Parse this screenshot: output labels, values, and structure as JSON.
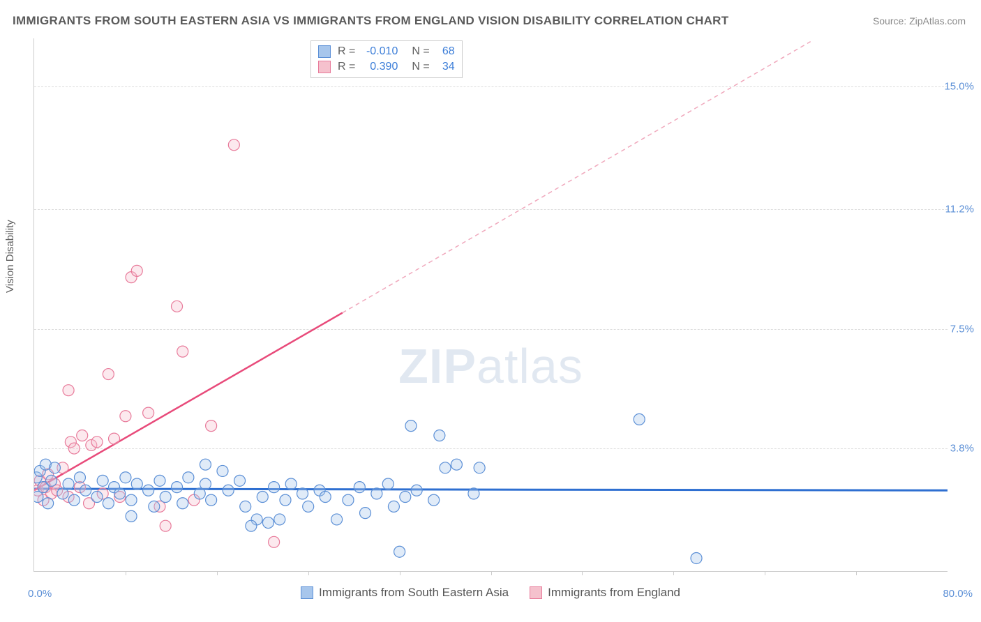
{
  "title": "IMMIGRANTS FROM SOUTH EASTERN ASIA VS IMMIGRANTS FROM ENGLAND VISION DISABILITY CORRELATION CHART",
  "source_label": "Source: ZipAtlas.com",
  "y_axis_label": "Vision Disability",
  "watermark_zip": "ZIP",
  "watermark_atlas": "atlas",
  "chart": {
    "type": "scatter",
    "xlim": [
      0,
      80
    ],
    "ylim": [
      0,
      16.5
    ],
    "x_tick_min_label": "0.0%",
    "x_tick_max_label": "80.0%",
    "y_ticks": [
      {
        "v": 3.8,
        "label": "3.8%"
      },
      {
        "v": 7.5,
        "label": "7.5%"
      },
      {
        "v": 11.2,
        "label": "11.2%"
      },
      {
        "v": 15.0,
        "label": "15.0%"
      }
    ],
    "x_tick_marks": [
      8,
      16,
      24,
      32,
      40,
      48,
      56,
      64,
      72
    ],
    "background_color": "#ffffff",
    "grid_color": "#dddddd",
    "series": {
      "blue": {
        "label": "Immigrants from South Eastern Asia",
        "color_fill": "#a7c6ec",
        "color_stroke": "#5b8fd6",
        "marker_radius": 8,
        "R": "-0.010",
        "N": "68",
        "trend": {
          "x1": 0,
          "y1": 2.55,
          "x2": 80,
          "y2": 2.5,
          "color": "#2e6fd1",
          "width": 3,
          "dash": "none"
        },
        "points": [
          [
            0.2,
            2.9
          ],
          [
            0.3,
            2.3
          ],
          [
            0.5,
            3.1
          ],
          [
            0.8,
            2.6
          ],
          [
            1.0,
            3.3
          ],
          [
            1.2,
            2.1
          ],
          [
            1.5,
            2.8
          ],
          [
            1.8,
            3.2
          ],
          [
            2.5,
            2.4
          ],
          [
            3.0,
            2.7
          ],
          [
            3.5,
            2.2
          ],
          [
            4.0,
            2.9
          ],
          [
            4.5,
            2.5
          ],
          [
            5.5,
            2.3
          ],
          [
            6.0,
            2.8
          ],
          [
            6.5,
            2.1
          ],
          [
            7.0,
            2.6
          ],
          [
            7.5,
            2.4
          ],
          [
            8.0,
            2.9
          ],
          [
            8.5,
            2.2
          ],
          [
            9.0,
            2.7
          ],
          [
            10.0,
            2.5
          ],
          [
            10.5,
            2.0
          ],
          [
            11.0,
            2.8
          ],
          [
            11.5,
            2.3
          ],
          [
            12.5,
            2.6
          ],
          [
            13.0,
            2.1
          ],
          [
            13.5,
            2.9
          ],
          [
            14.5,
            2.4
          ],
          [
            15.0,
            2.7
          ],
          [
            15.5,
            2.2
          ],
          [
            16.5,
            3.1
          ],
          [
            17.0,
            2.5
          ],
          [
            18.0,
            2.8
          ],
          [
            18.5,
            2.0
          ],
          [
            19.5,
            1.6
          ],
          [
            20.0,
            2.3
          ],
          [
            20.5,
            1.5
          ],
          [
            21.0,
            2.6
          ],
          [
            22.0,
            2.2
          ],
          [
            22.5,
            2.7
          ],
          [
            23.5,
            2.4
          ],
          [
            24.0,
            2.0
          ],
          [
            25.0,
            2.5
          ],
          [
            25.5,
            2.3
          ],
          [
            26.5,
            1.6
          ],
          [
            27.5,
            2.2
          ],
          [
            28.5,
            2.6
          ],
          [
            29.0,
            1.8
          ],
          [
            30.0,
            2.4
          ],
          [
            31.0,
            2.7
          ],
          [
            31.5,
            2.0
          ],
          [
            32.5,
            2.3
          ],
          [
            33.0,
            4.5
          ],
          [
            33.5,
            2.5
          ],
          [
            35.0,
            2.2
          ],
          [
            35.5,
            4.2
          ],
          [
            36.0,
            3.2
          ],
          [
            37.0,
            3.3
          ],
          [
            38.5,
            2.4
          ],
          [
            39.0,
            3.2
          ],
          [
            32.0,
            0.6
          ],
          [
            58.0,
            0.4
          ],
          [
            53.0,
            4.7
          ],
          [
            15.0,
            3.3
          ],
          [
            8.5,
            1.7
          ],
          [
            19.0,
            1.4
          ],
          [
            21.5,
            1.6
          ]
        ]
      },
      "pink": {
        "label": "Immigrants from England",
        "color_fill": "#f5c1cd",
        "color_stroke": "#e87a9a",
        "marker_radius": 8,
        "R": "0.390",
        "N": "34",
        "trend_solid": {
          "x1": 0,
          "y1": 2.5,
          "x2": 27,
          "y2": 8.0,
          "color": "#e84a7a",
          "width": 2.5
        },
        "trend_dash": {
          "x1": 27,
          "y1": 8.0,
          "x2": 68,
          "y2": 16.4,
          "color": "#f0a8bc",
          "width": 1.5,
          "dash": "6,5"
        },
        "points": [
          [
            0.3,
            2.5
          ],
          [
            0.5,
            2.8
          ],
          [
            0.8,
            2.2
          ],
          [
            1.0,
            2.6
          ],
          [
            1.2,
            3.0
          ],
          [
            1.5,
            2.4
          ],
          [
            1.8,
            2.7
          ],
          [
            2.0,
            2.5
          ],
          [
            2.5,
            3.2
          ],
          [
            3.0,
            2.3
          ],
          [
            3.2,
            4.0
          ],
          [
            3.5,
            3.8
          ],
          [
            4.0,
            2.6
          ],
          [
            4.2,
            4.2
          ],
          [
            4.8,
            2.1
          ],
          [
            5.0,
            3.9
          ],
          [
            5.5,
            4.0
          ],
          [
            6.0,
            2.4
          ],
          [
            6.5,
            6.1
          ],
          [
            7.0,
            4.1
          ],
          [
            7.5,
            2.3
          ],
          [
            8.0,
            4.8
          ],
          [
            8.5,
            9.1
          ],
          [
            9.0,
            9.3
          ],
          [
            10.0,
            4.9
          ],
          [
            11.0,
            2.0
          ],
          [
            11.5,
            1.4
          ],
          [
            12.5,
            8.2
          ],
          [
            13.0,
            6.8
          ],
          [
            14.0,
            2.2
          ],
          [
            15.5,
            4.5
          ],
          [
            17.5,
            13.2
          ],
          [
            21.0,
            0.9
          ],
          [
            3.0,
            5.6
          ]
        ]
      }
    }
  },
  "legend_top": {
    "r_label": "R =",
    "n_label": "N ="
  }
}
